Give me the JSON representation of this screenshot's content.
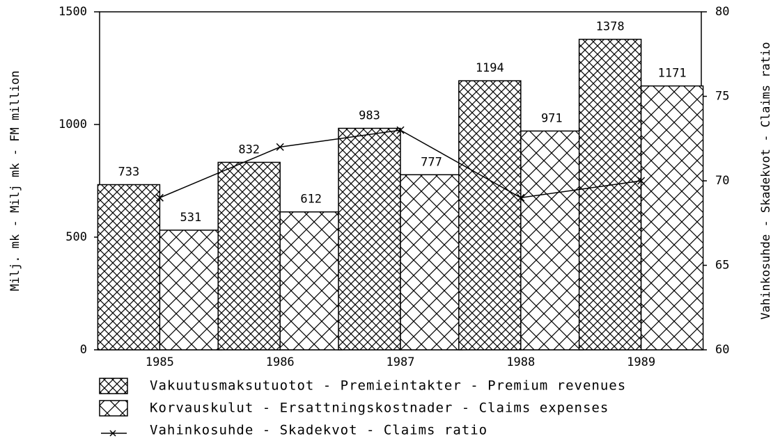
{
  "chart_data": {
    "type": "bar",
    "categories": [
      "1985",
      "1986",
      "1987",
      "1988",
      "1989"
    ],
    "series": [
      {
        "name": "Vakuutusmaksutuotot - Premieintakter - Premium revenues",
        "color": "#000000",
        "values": [
          733,
          832,
          983,
          1194,
          1378
        ]
      },
      {
        "name": "Korvauskulut - Ersattningskostnader - Claims expenses",
        "color": "#000000",
        "values": [
          531,
          612,
          777,
          971,
          1171
        ]
      },
      {
        "name": "Vahinkosuhde - Skadekvot - Claims ratio",
        "type": "line",
        "axis": "y2",
        "color": "#000000",
        "values": [
          69,
          72,
          73,
          69,
          70
        ]
      }
    ],
    "ylabel": "Milj. mk - Milj mk - FM million",
    "y2label": "Vahinkosuhde - Skadekvot - Claims ratio",
    "ylim": [
      0,
      1500
    ],
    "yticks": [
      0,
      500,
      1000,
      1500
    ],
    "y2lim": [
      60,
      80
    ],
    "y2ticks": [
      60,
      65,
      70,
      75,
      80
    ]
  }
}
